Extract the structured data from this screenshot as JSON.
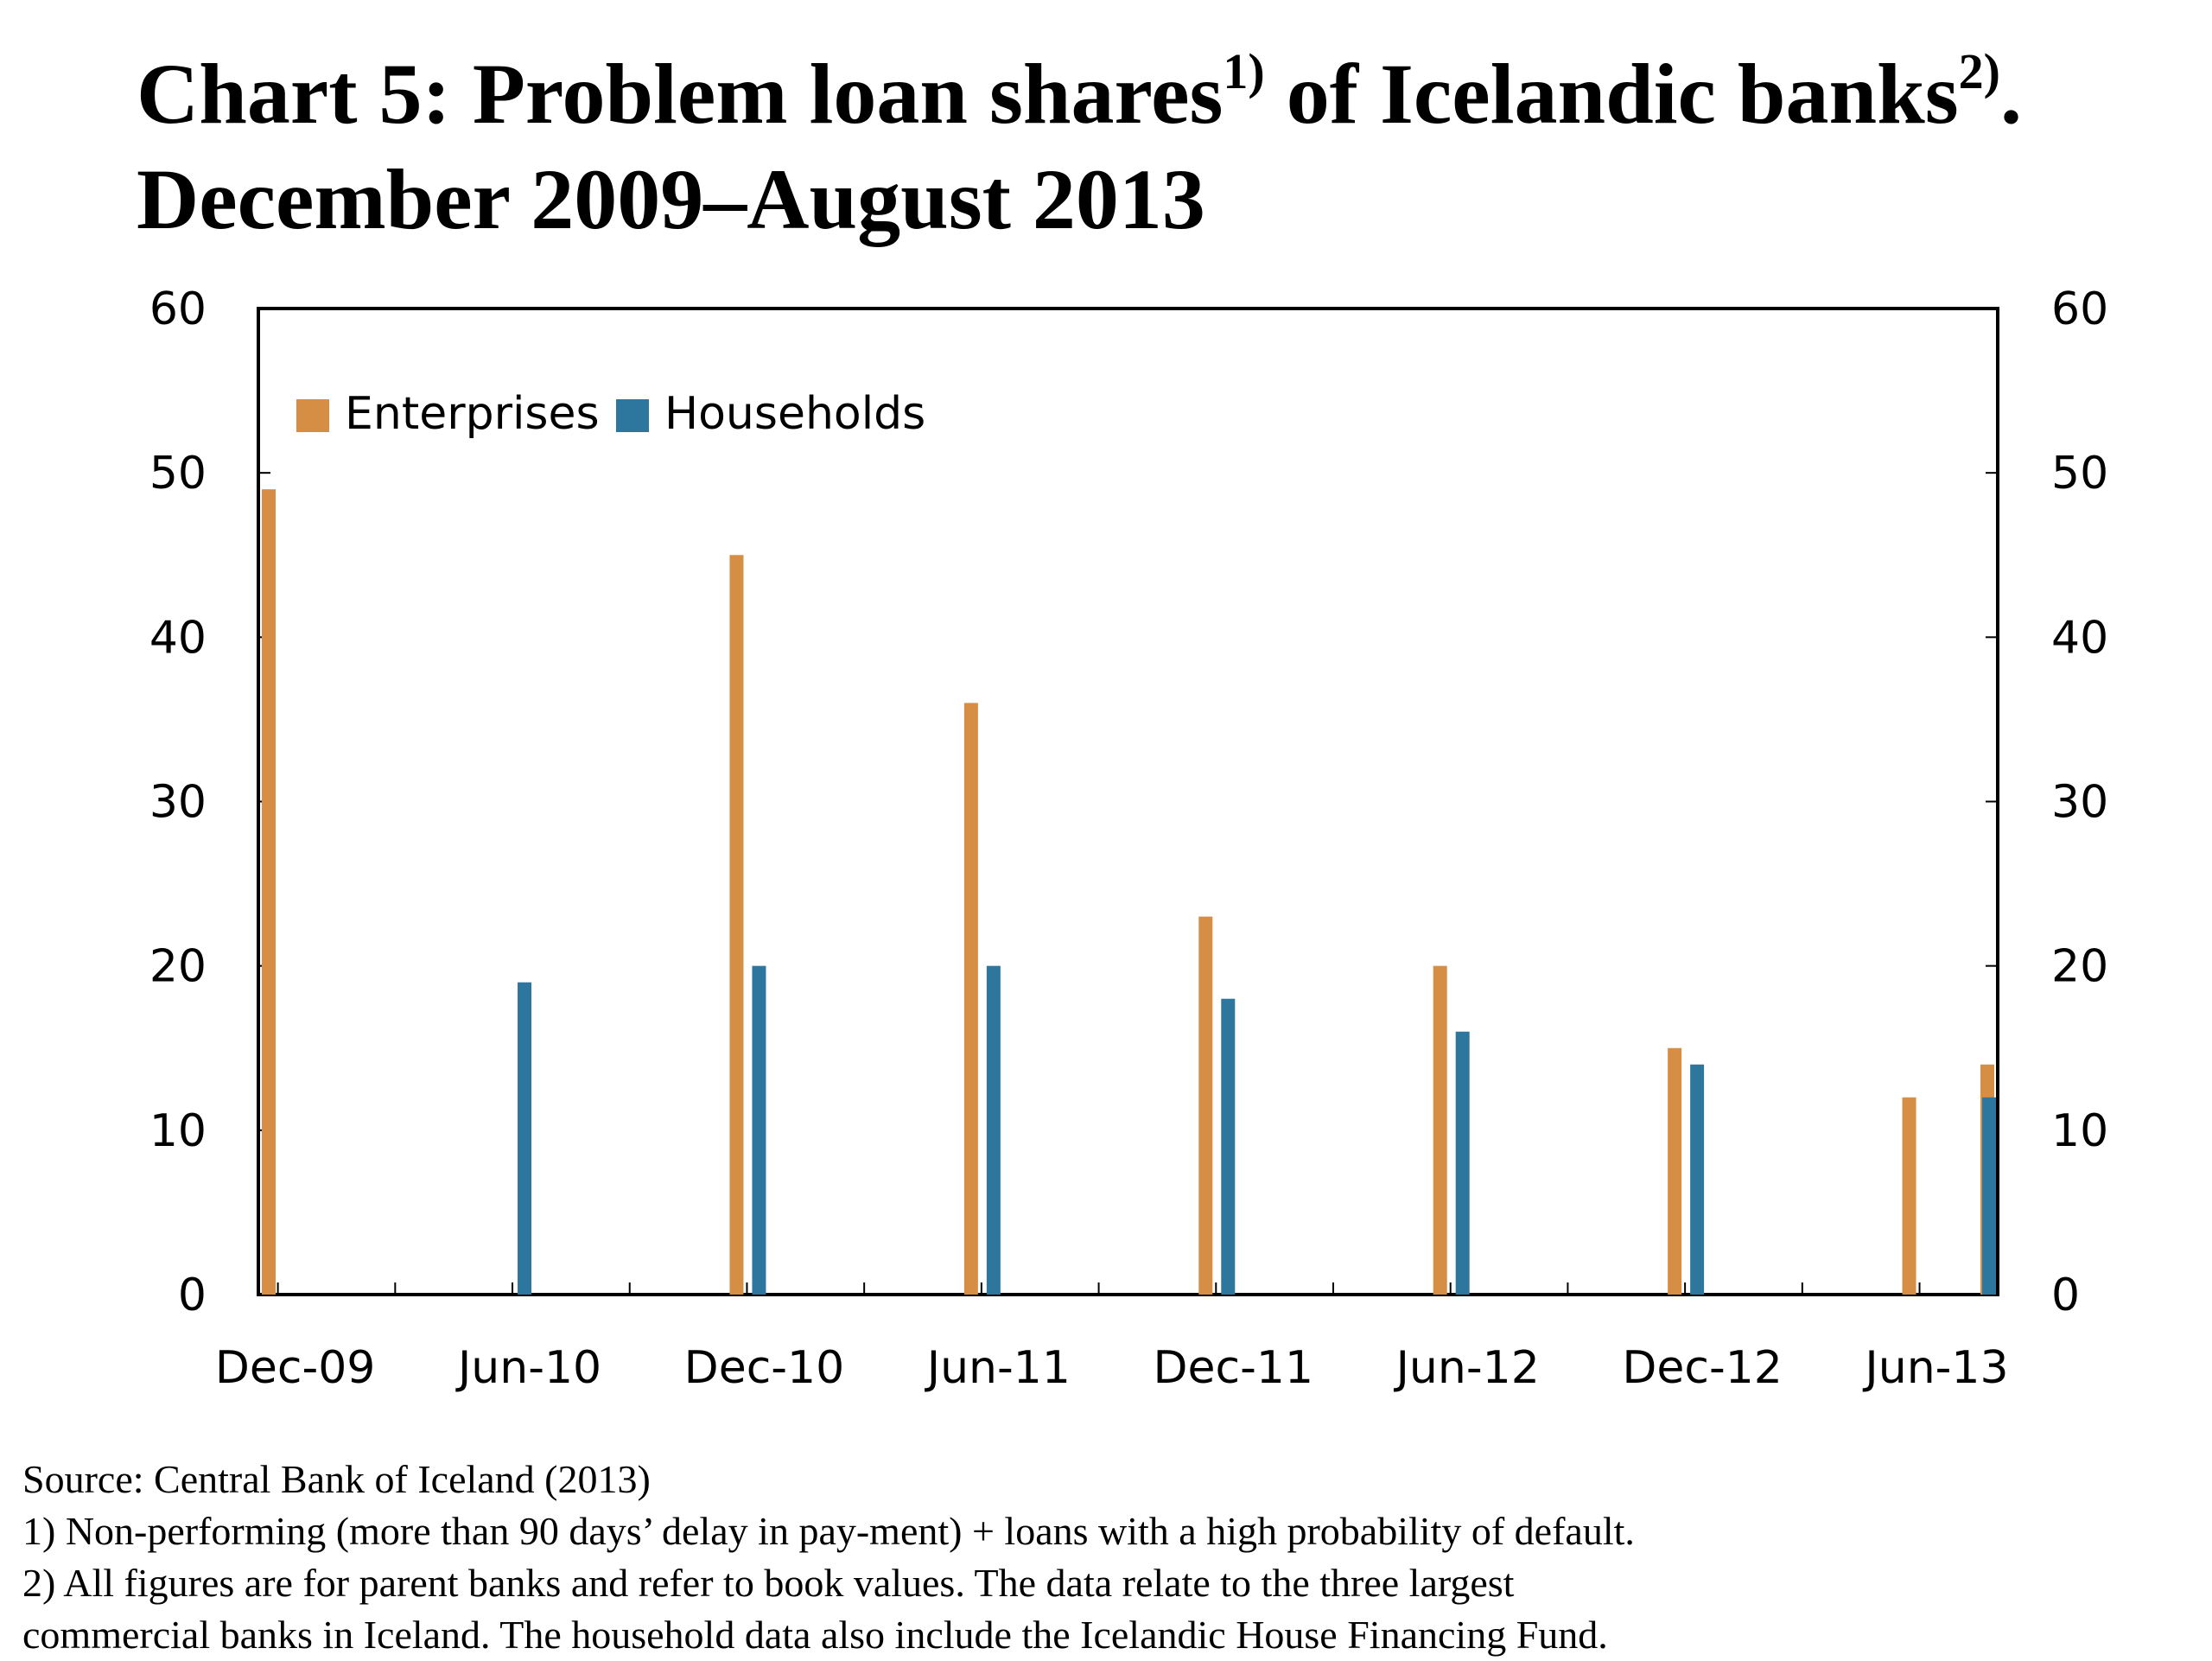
{
  "title": {
    "main": "Chart 5: Problem loan shares",
    "sup1": "1)",
    "middle": " of Icelandic banks",
    "sup2": "2)",
    "end": ".",
    "line2": "December 2009–August 2013"
  },
  "footnotes": {
    "source": "Source: Central Bank of Iceland (2013)",
    "note1": "1) Non-performing (more than 90 days’ delay in pay-ment) + loans with a high probability of default.",
    "note2a": "2) All figures are for parent banks and refer to book values. The data relate to the three largest",
    "note2b": "commercial banks in Iceland. The household data also include the Icelandic House Financing Fund."
  },
  "colors": {
    "enterprises": "#D68E44",
    "households": "#2D769E",
    "axis": "#000000"
  },
  "chart_data": {
    "type": "bar",
    "x_ticks": [
      "Dec-09",
      "Jun-10",
      "Dec-10",
      "Jun-11",
      "Dec-11",
      "Jun-12",
      "Dec-12",
      "Jun-13"
    ],
    "ylim": [
      0,
      60
    ],
    "y_ticks": [
      0,
      10,
      20,
      30,
      40,
      50,
      60
    ],
    "y_ticks_right": [
      0,
      10,
      20,
      30,
      40,
      50,
      60
    ],
    "legend_position": "top-left",
    "grid": false,
    "series": [
      {
        "name": "Enterprises",
        "color": "#D68E44",
        "points": [
          {
            "x": "Dec-09",
            "y": 49
          },
          {
            "x": "Dec-10",
            "y": 45
          },
          {
            "x": "Jun-11",
            "y": 36
          },
          {
            "x": "Dec-11",
            "y": 23
          },
          {
            "x": "Jun-12",
            "y": 20
          },
          {
            "x": "Dec-12",
            "y": 15
          },
          {
            "x": "Jun-13",
            "y": 12
          },
          {
            "x": "Aug-13",
            "y": 14
          }
        ]
      },
      {
        "name": "Households",
        "color": "#2D769E",
        "points": [
          {
            "x": "Jun-10",
            "y": 19
          },
          {
            "x": "Dec-10",
            "y": 20
          },
          {
            "x": "Jun-11",
            "y": 20
          },
          {
            "x": "Dec-11",
            "y": 18
          },
          {
            "x": "Jun-12",
            "y": 16
          },
          {
            "x": "Dec-12",
            "y": 14
          },
          {
            "x": "Aug-13",
            "y": 12
          }
        ]
      }
    ]
  }
}
